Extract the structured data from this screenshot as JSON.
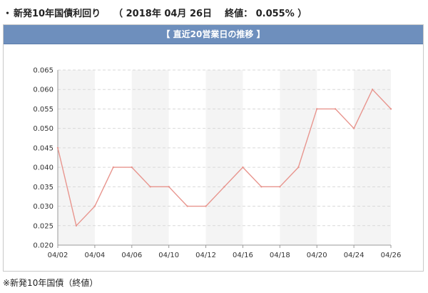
{
  "header": {
    "bullet": "・",
    "label": "新発10年国債利回り",
    "date_open": "（ 2018年 04月 26日",
    "close_label": "終値：",
    "close_value": "0.055% ）"
  },
  "panel": {
    "title": "【 直近20営業日の推移 】"
  },
  "chart_data": {
    "type": "line",
    "title": "",
    "xlabel": "",
    "ylabel": "",
    "ylim": [
      0.02,
      0.065
    ],
    "yticks": [
      0.02,
      0.025,
      0.03,
      0.035,
      0.04,
      0.045,
      0.05,
      0.055,
      0.06,
      0.065
    ],
    "ytick_labels": [
      "0.020",
      "0.025",
      "0.030",
      "0.035",
      "0.040",
      "0.045",
      "0.050",
      "0.055",
      "0.060",
      "0.065"
    ],
    "x": [
      "04/02",
      "04/03",
      "04/04",
      "04/05",
      "04/06",
      "04/09",
      "04/10",
      "04/11",
      "04/12",
      "04/13",
      "04/16",
      "04/17",
      "04/18",
      "04/19",
      "04/20",
      "04/23",
      "04/24",
      "04/25",
      "04/26"
    ],
    "xtick_labels": [
      "04/02",
      "04/04",
      "04/06",
      "04/10",
      "04/12",
      "04/16",
      "04/18",
      "04/20",
      "04/24",
      "04/26"
    ],
    "series": [
      {
        "values": [
          0.045,
          0.025,
          0.03,
          0.04,
          0.04,
          0.035,
          0.035,
          0.03,
          0.03,
          0.035,
          0.04,
          0.035,
          0.035,
          0.04,
          0.055,
          0.055,
          0.05,
          0.06,
          0.055
        ]
      }
    ],
    "grid": true,
    "line_color": "#e8958e",
    "band_color": "#f4f4f4",
    "grid_color": "#d9d9d9"
  },
  "footnote": "※新発10年国債（終値）"
}
